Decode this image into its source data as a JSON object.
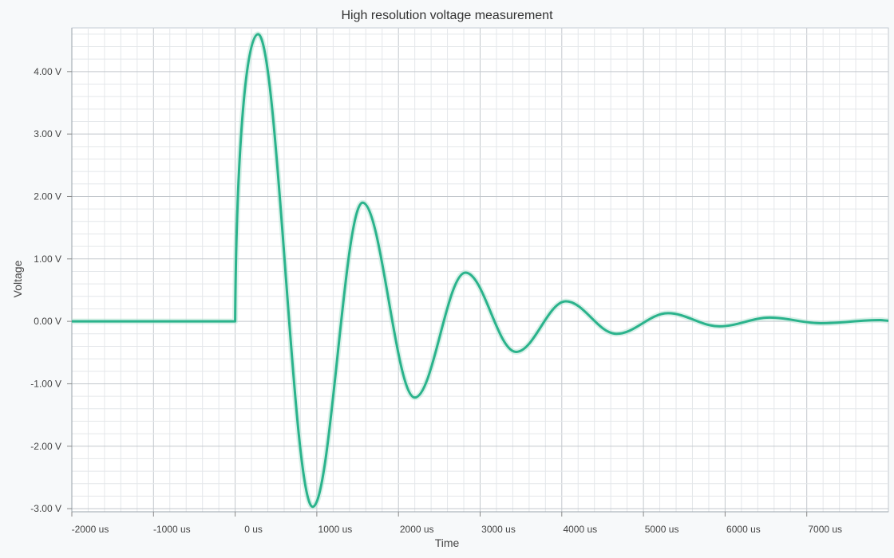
{
  "chart_data": {
    "type": "line",
    "title": "High resolution voltage measurement",
    "xlabel": "Time",
    "ylabel": "Voltage",
    "xlim": [
      -2000,
      8000
    ],
    "ylim": [
      -3.05,
      4.7
    ],
    "x_ticks": [
      {
        "value": -2000,
        "label": "-2000 us"
      },
      {
        "value": -1000,
        "label": "-1000 us"
      },
      {
        "value": 0,
        "label": "0 us"
      },
      {
        "value": 1000,
        "label": "1000 us"
      },
      {
        "value": 2000,
        "label": "2000 us"
      },
      {
        "value": 3000,
        "label": "3000 us"
      },
      {
        "value": 4000,
        "label": "4000 us"
      },
      {
        "value": 5000,
        "label": "5000 us"
      },
      {
        "value": 6000,
        "label": "6000 us"
      },
      {
        "value": 7000,
        "label": "7000 us"
      }
    ],
    "y_ticks": [
      {
        "value": 4,
        "label": "4.00 V"
      },
      {
        "value": 3,
        "label": "3.00 V"
      },
      {
        "value": 2,
        "label": "2.00 V"
      },
      {
        "value": 1,
        "label": "1.00 V"
      },
      {
        "value": 0,
        "label": "0.00 V"
      },
      {
        "value": -1,
        "label": "-1.00 V"
      },
      {
        "value": -2,
        "label": "-2.00 V"
      },
      {
        "value": -3,
        "label": "-3.00 V"
      }
    ],
    "grid": true,
    "line_color": "#2bb38c",
    "series": [
      {
        "x": [
          -2000,
          -1000,
          0,
          280,
          950,
          1560,
          2200,
          2820,
          3440,
          4050,
          4670,
          5300,
          5930,
          6550,
          7170,
          7900,
          8000
        ],
        "y": [
          0,
          0,
          0,
          4.6,
          -2.97,
          1.9,
          -1.22,
          0.78,
          -0.49,
          0.32,
          -0.2,
          0.13,
          -0.08,
          0.06,
          -0.03,
          0.02,
          0.01
        ]
      }
    ]
  }
}
